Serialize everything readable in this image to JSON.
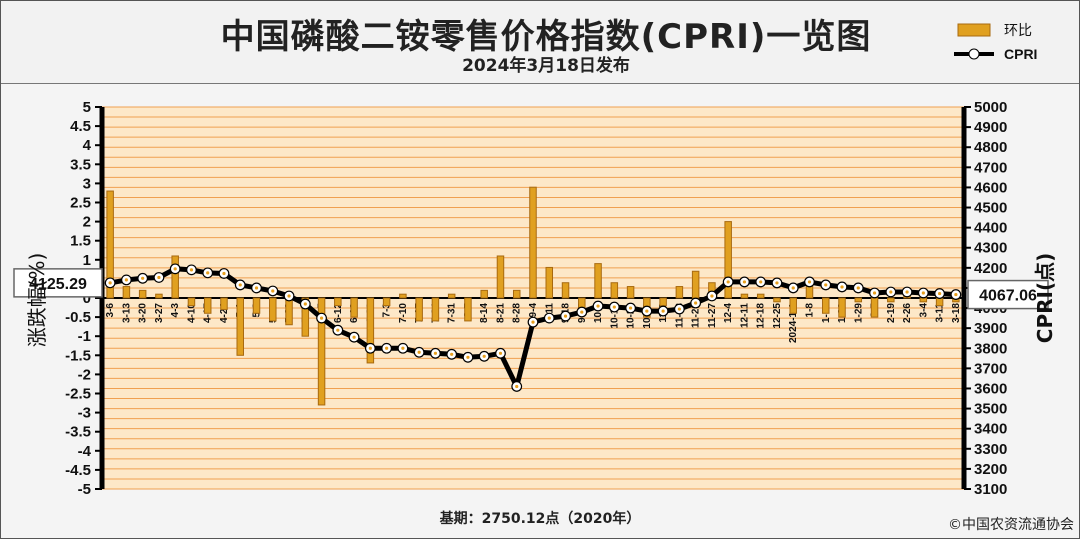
{
  "header": {
    "title": "中国磷酸二铵零售价格指数(CPRI)一览图",
    "subtitle": "2024年3月18日发布"
  },
  "legend": {
    "bar_label": "环比",
    "line_label": "CPRI"
  },
  "colors": {
    "bar": "#e0a020",
    "bar_edge": "#a86a10",
    "line": "#000000",
    "marker_fill": "#ffffff",
    "marker_center": "#e8a020",
    "plot_bg": "#fde8c8",
    "grid": "#f0a050"
  },
  "chart_data": {
    "type": "bar",
    "title": "中国磷酸二铵零售价格指数(CPRI)一览图",
    "categories": [
      "3-6",
      "3-13",
      "3-20",
      "3-27",
      "4-3",
      "4-10",
      "4-17",
      "4-24",
      "5-1",
      "5-8",
      "5-16",
      "5-22",
      "5-29",
      "6-5",
      "6-12",
      "6-19",
      "6-26",
      "7-3",
      "7-10",
      "7-17",
      "7-24",
      "7-31",
      "8-7",
      "8-14",
      "8-21",
      "8-28",
      "9-4",
      "9-11",
      "9-18",
      "9-25",
      "10-9",
      "10-16",
      "10-23",
      "10-30",
      "11-6",
      "11-13",
      "11-20",
      "11-27",
      "12-4",
      "12-11",
      "12-18",
      "12-25",
      "2024-1-1",
      "1-8",
      "1-15",
      "1-22",
      "1-29",
      "2-5",
      "2-19",
      "2-26",
      "3-4",
      "3-11",
      "3-18"
    ],
    "series": [
      {
        "name": "环比",
        "axis": "left",
        "values": [
          2.8,
          0.3,
          0.2,
          0.1,
          1.1,
          -0.2,
          -0.4,
          -0.3,
          -1.5,
          -0.4,
          -0.6,
          -0.7,
          -1.0,
          -2.8,
          -0.2,
          -0.5,
          -1.7,
          -0.2,
          0.1,
          -0.6,
          -0.6,
          0.1,
          -0.6,
          0.2,
          1.1,
          0.2,
          2.9,
          0.8,
          0.4,
          -0.3,
          0.9,
          0.4,
          0.3,
          -0.5,
          -0.2,
          0.3,
          0.7,
          0.4,
          2.0,
          0.1,
          0.1,
          -0.1,
          -0.4,
          0.3,
          -0.4,
          -0.5,
          -0.1,
          -0.5,
          -0.1,
          0.1,
          -0.1,
          -0.2,
          -0.1
        ]
      },
      {
        "name": "CPRI",
        "axis": "right",
        "values": [
          4125.29,
          4140,
          4148,
          4152,
          4195,
          4190,
          4175,
          4172,
          4115,
          4100,
          4085,
          4060,
          4020,
          3950,
          3890,
          3855,
          3800,
          3800,
          3800,
          3780,
          3775,
          3770,
          3755,
          3760,
          3775,
          3610,
          3930,
          3950,
          3960,
          3980,
          4010,
          4005,
          4000,
          3985,
          3985,
          3995,
          4025,
          4060,
          4130,
          4130,
          4130,
          4125,
          4100,
          4130,
          4115,
          4105,
          4100,
          4075,
          4080,
          4080,
          4075,
          4072,
          4067.06
        ]
      }
    ],
    "ylabel": "涨跌幅(%)",
    "y2label": "CPRI(点)",
    "ylim": [
      -5,
      5
    ],
    "y2lim": [
      3100,
      5000
    ],
    "yticks": [
      "5",
      "4.5",
      "4",
      "3.5",
      "3",
      "2.5",
      "2",
      "1.5",
      "1",
      "0.5",
      "0",
      "-0.5",
      "-1",
      "-1.5",
      "-2",
      "-2.5",
      "-3",
      "-3.5",
      "-4",
      "-4.5",
      "-5"
    ],
    "y2ticks": [
      "5000",
      "4900",
      "4800",
      "4700",
      "4600",
      "4500",
      "4400",
      "4300",
      "4200",
      "4100",
      "4000",
      "3900",
      "3800",
      "3700",
      "3600",
      "3500",
      "3400",
      "3300",
      "3200",
      "3100"
    ],
    "callouts": {
      "start": "4125.29",
      "end": "4067.06"
    },
    "grid": true,
    "legend_position": "top-right"
  },
  "footer": {
    "base": "基期：2750.12点（2020年）",
    "copyright": "©中国农资流通协会"
  }
}
